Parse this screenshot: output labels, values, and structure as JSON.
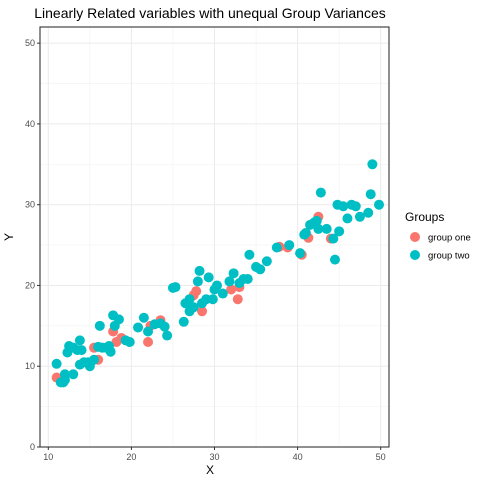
{
  "chart_data": {
    "type": "scatter",
    "title": "Linearly Related variables with unequal Group Variances",
    "xlabel": "X",
    "ylabel": "Y",
    "xlim": [
      9,
      51
    ],
    "ylim": [
      0,
      52
    ],
    "x_ticks": [
      10,
      20,
      30,
      40,
      50
    ],
    "y_ticks": [
      0,
      10,
      20,
      30,
      40,
      50
    ],
    "grid": true,
    "panel_border": true,
    "legend": {
      "title": "Groups",
      "placement": "right"
    },
    "series": [
      {
        "name": "group one",
        "color": "#F8766D",
        "points": [
          [
            11,
            8.6
          ],
          [
            15.5,
            12.3
          ],
          [
            16,
            10.8
          ],
          [
            17.8,
            14.3
          ],
          [
            18.2,
            13.0
          ],
          [
            18.8,
            13.5
          ],
          [
            22,
            13.0
          ],
          [
            22.3,
            15.0
          ],
          [
            23.5,
            15.7
          ],
          [
            27.5,
            18.8
          ],
          [
            27.8,
            19.3
          ],
          [
            28.5,
            16.8
          ],
          [
            32,
            19.5
          ],
          [
            32.8,
            18.3
          ],
          [
            33,
            19.8
          ],
          [
            37.8,
            24.8
          ],
          [
            38.8,
            24.7
          ],
          [
            40.5,
            23.8
          ],
          [
            41.3,
            25.9
          ],
          [
            42.5,
            28.5
          ],
          [
            44,
            25.8
          ]
        ]
      },
      {
        "name": "group two",
        "color": "#00BFC4",
        "points": [
          [
            11,
            10.3
          ],
          [
            11.5,
            8.0
          ],
          [
            11.8,
            8.0
          ],
          [
            12,
            9.0
          ],
          [
            12,
            8.3
          ],
          [
            12.3,
            11.7
          ],
          [
            12.5,
            12.5
          ],
          [
            13,
            12.3
          ],
          [
            13,
            9.0
          ],
          [
            13.5,
            12.0
          ],
          [
            13.8,
            10.2
          ],
          [
            13.8,
            13.2
          ],
          [
            14,
            12.0
          ],
          [
            14.3,
            10.5
          ],
          [
            14.8,
            10.5
          ],
          [
            15,
            10.0
          ],
          [
            15.5,
            10.8
          ],
          [
            16,
            12.4
          ],
          [
            16.2,
            15.0
          ],
          [
            16.5,
            12.3
          ],
          [
            17,
            12.3
          ],
          [
            17.3,
            12.5
          ],
          [
            17.5,
            11.8
          ],
          [
            17.8,
            16.3
          ],
          [
            18,
            15.0
          ],
          [
            18.5,
            15.8
          ],
          [
            19.3,
            13.2
          ],
          [
            19.8,
            13.0
          ],
          [
            20.8,
            14.8
          ],
          [
            21.5,
            16.0
          ],
          [
            22,
            14.3
          ],
          [
            22.8,
            15.2
          ],
          [
            23.5,
            15.3
          ],
          [
            24,
            14.9
          ],
          [
            24.3,
            13.8
          ],
          [
            25,
            19.7
          ],
          [
            25.3,
            19.8
          ],
          [
            26.3,
            15.5
          ],
          [
            26.5,
            17.8
          ],
          [
            27,
            18.3
          ],
          [
            27,
            16.8
          ],
          [
            27.5,
            17.3
          ],
          [
            28,
            20.5
          ],
          [
            28.2,
            21.8
          ],
          [
            28.5,
            17.8
          ],
          [
            29,
            18.3
          ],
          [
            29.3,
            21.0
          ],
          [
            29.8,
            18.3
          ],
          [
            30,
            19.5
          ],
          [
            30.3,
            20.0
          ],
          [
            31,
            19.0
          ],
          [
            31.8,
            20.5
          ],
          [
            32.3,
            21.5
          ],
          [
            33,
            20.3
          ],
          [
            33.5,
            20.8
          ],
          [
            34,
            20.8
          ],
          [
            34.2,
            23.8
          ],
          [
            35,
            22.3
          ],
          [
            35.5,
            22.0
          ],
          [
            36.3,
            23.0
          ],
          [
            37.5,
            24.7
          ],
          [
            39,
            25.0
          ],
          [
            40.3,
            24.0
          ],
          [
            40.8,
            26.3
          ],
          [
            41,
            26.5
          ],
          [
            41.5,
            27.5
          ],
          [
            42,
            27.8
          ],
          [
            42.3,
            28.0
          ],
          [
            42.5,
            27.0
          ],
          [
            42.8,
            31.5
          ],
          [
            43.5,
            27.0
          ],
          [
            44.3,
            25.8
          ],
          [
            44.5,
            23.2
          ],
          [
            44.8,
            30.0
          ],
          [
            45,
            26.7
          ],
          [
            45.5,
            29.8
          ],
          [
            46,
            28.3
          ],
          [
            46.5,
            30.0
          ],
          [
            47,
            29.8
          ],
          [
            47.5,
            28.5
          ],
          [
            48.5,
            29.0
          ],
          [
            48.8,
            31.3
          ],
          [
            49,
            35.0
          ],
          [
            49.8,
            30.0
          ]
        ]
      }
    ]
  }
}
